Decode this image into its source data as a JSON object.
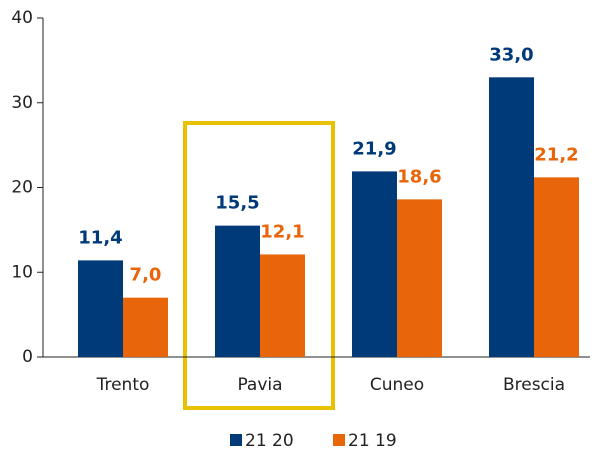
{
  "chart_data": {
    "type": "bar",
    "categories": [
      "Trento",
      "Pavia",
      "Cuneo",
      "Brescia"
    ],
    "series": [
      {
        "name": "21 20",
        "color": "#003a78",
        "values": [
          11.4,
          15.5,
          21.9,
          33.0
        ],
        "value_labels": [
          "11,4",
          "15,5",
          "21,9",
          "33,0"
        ]
      },
      {
        "name": "21 19",
        "color": "#e8650a",
        "values": [
          7.0,
          12.1,
          18.6,
          21.2
        ],
        "value_labels": [
          "7,0",
          "12,1",
          "18,6",
          "21,2"
        ]
      }
    ],
    "ylim": [
      0,
      40
    ],
    "yticks": [
      0,
      10,
      20,
      30,
      40
    ],
    "grid": false,
    "legend": "bottom"
  }
}
